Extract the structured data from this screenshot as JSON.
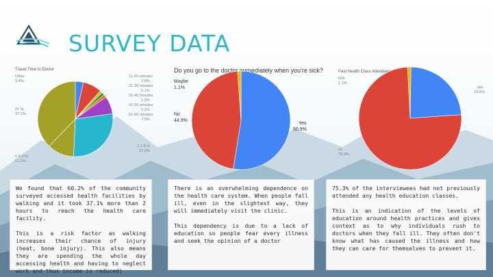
{
  "slide": {
    "title": "SURVEY DATA",
    "colors": {
      "accent": "#2cb6c9",
      "red": "#db4437",
      "blue": "#4285f4",
      "yellow": "#f4b400",
      "green": "#0f9d58",
      "orange": "#ff6d00",
      "purple": "#a040c8",
      "olive": "#a3a128",
      "teal": "#27b6cf"
    },
    "logo_icon": "mountain-triangle-logo",
    "background": "mountain-landscape"
  },
  "chart_data": [
    {
      "type": "pie",
      "title": "Travel Time to Doctor",
      "slices": [
        {
          "label": "Other",
          "value": 3.4,
          "value_label": "3.4%",
          "color": "#4285f4"
        },
        {
          "label": "11-20 minutes",
          "value": 7.9,
          "value_label": "7.9%",
          "color": "#db4437"
        },
        {
          "label": "21-30 minutes",
          "value": 1.1,
          "value_label": "1.1%",
          "color": "#f4b400"
        },
        {
          "label": "31-40 minutes",
          "value": 1.2,
          "value_label": "1.2%",
          "color": "#0f9d58"
        },
        {
          "label": "41-50 minutes",
          "value": 1.2,
          "value_label": "1.2%",
          "color": "#ff6d00"
        },
        {
          "label": "51-60 minutes",
          "value": 7.5,
          "value_label": "7.5%",
          "color": "#a040c8"
        },
        {
          "label": "1-1.5 hr",
          "value": 27.5,
          "value_label": "27.5%",
          "color": "#27b6cf"
        },
        {
          "label": "1.5-2 hr",
          "value": 11.2,
          "value_label": "11.2%",
          "color": "#a3a128"
        },
        {
          "label": "2+ hr",
          "value": 37.1,
          "value_label": "37.1%",
          "color": "#a3a128"
        }
      ]
    },
    {
      "type": "pie",
      "title": "Do you go to the doctor immediately when you're sick?",
      "slices": [
        {
          "label": "Yes",
          "value": 50.9,
          "value_label": "50.9%",
          "color": "#4285f4"
        },
        {
          "label": "No",
          "value": 44.9,
          "value_label": "44.9%",
          "color": "#db4437"
        },
        {
          "label": "Maybe",
          "value": 1.1,
          "value_label": "1.1%",
          "color": "#f4b400"
        }
      ]
    },
    {
      "type": "pie",
      "title": "Past Health Class Attendance",
      "slices": [
        {
          "label": "N/A",
          "value": 1.1,
          "value_label": "1.1%",
          "color": "#f4b400"
        },
        {
          "label": "yes",
          "value": 23.6,
          "value_label": "23.6%",
          "color": "#4285f4"
        },
        {
          "label": "no",
          "value": 75.3,
          "value_label": "75.3%",
          "color": "#db4437"
        }
      ]
    }
  ],
  "text_boxes": [
    {
      "paragraphs": [
        "We found that 60.2% of the community surveyed accessed health facilities by walking and it took 37.1% more than 2 hours to reach the health care facility.",
        "This is a risk factor as walking increases their chance of injury (heat, bone injury). This also means they are spending the whole day accessing health and having to neglect work and thus income is reduced)"
      ]
    },
    {
      "paragraphs": [
        "There is an overwhelming dependence on the health care system. When people fall ill, even in the slightest way, they will immediately visit the clinic.",
        "This dependency is due to a lack of education so people fear every illness and seek the opinion of a doctor"
      ]
    },
    {
      "paragraphs": [
        "75.3% of the interviewees had not previously attended any health education classes.",
        "This is an indication of the levels of education around health practices and gives context as to why individuals rush to doctors when they fall ill. They often don't know what has caused the illness and how they can care for themselves to prevent it."
      ]
    }
  ]
}
